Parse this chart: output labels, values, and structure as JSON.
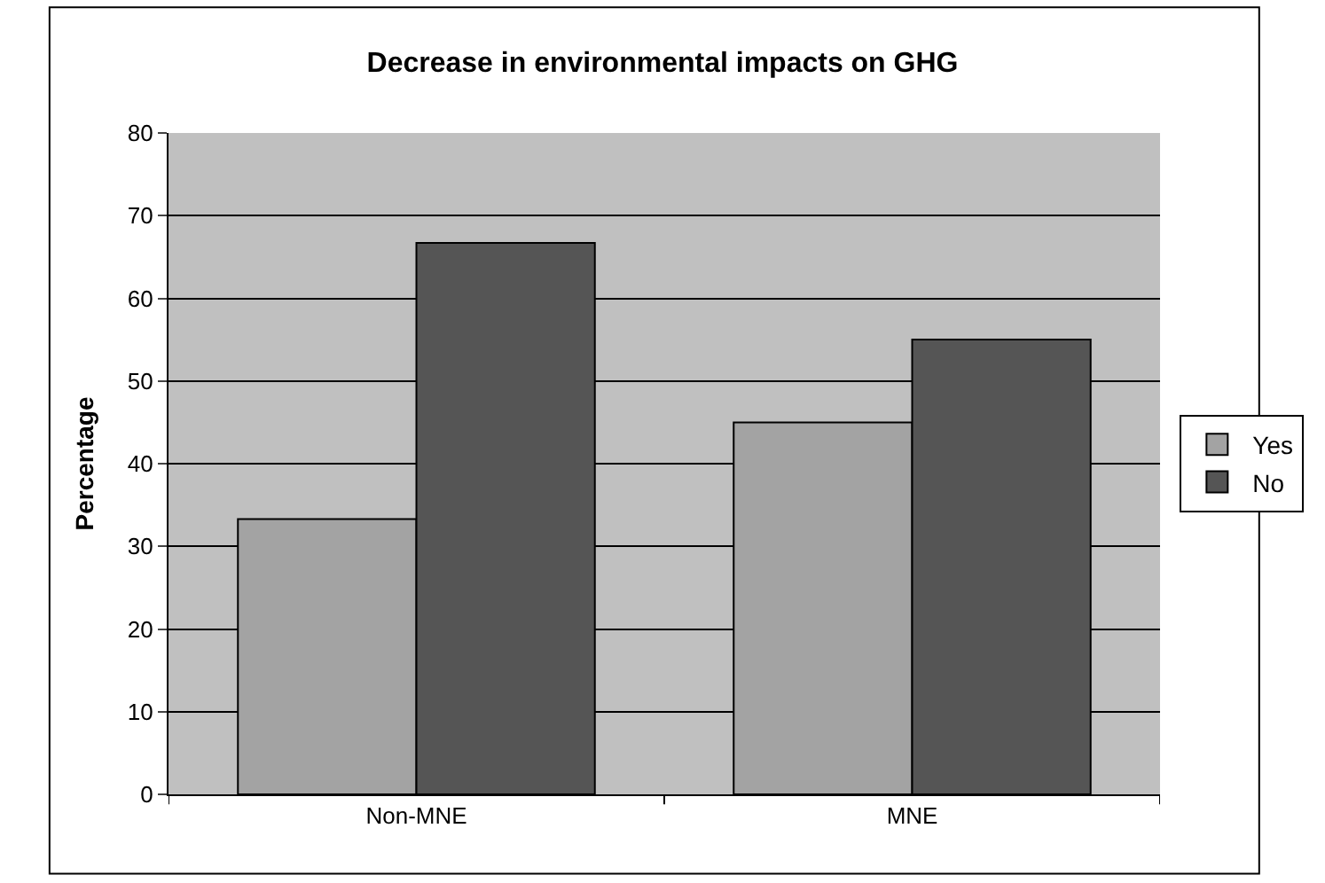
{
  "chart_data": {
    "type": "bar",
    "title": "Decrease in environmental impacts on GHG",
    "ylabel": "Percentage",
    "categories": [
      "Non-MNE",
      "MNE"
    ],
    "series": [
      {
        "name": "Yes",
        "color": "#a3a3a3",
        "values": [
          33.3,
          45
        ]
      },
      {
        "name": "No",
        "color": "#555555",
        "values": [
          66.7,
          55
        ]
      }
    ],
    "ylim": [
      0,
      80
    ],
    "yticks": [
      0,
      10,
      20,
      30,
      40,
      50,
      60,
      70,
      80
    ],
    "grid": "y",
    "legend": "right"
  }
}
